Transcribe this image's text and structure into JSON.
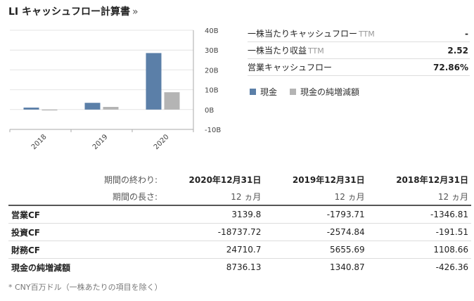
{
  "header": {
    "title": "LI キャッシュフロー計算書",
    "chevron": "»"
  },
  "chart_data": {
    "type": "bar",
    "categories": [
      "2018",
      "2019",
      "2020"
    ],
    "series": [
      {
        "name": "現金",
        "color": "#5b7fa8",
        "values": [
          1.0,
          3.4,
          28.5
        ]
      },
      {
        "name": "現金の純増減額",
        "color": "#b4b4b4",
        "values": [
          -0.43,
          1.34,
          8.74
        ]
      }
    ],
    "ylim": [
      -10,
      40
    ],
    "yticks": [
      40,
      30,
      20,
      10,
      0,
      -10
    ],
    "ytick_labels": [
      "40B",
      "30B",
      "20B",
      "10B",
      "0B",
      "-10B"
    ],
    "grid": true
  },
  "stats": [
    {
      "label": "一株当たりキャッシュフロー",
      "suffix": "TTM",
      "value": "-"
    },
    {
      "label": "一株当たり収益",
      "suffix": "TTM",
      "value": "2.52"
    },
    {
      "label": "営業キャッシュフロー",
      "suffix": "",
      "value": "72.86%"
    }
  ],
  "legend": [
    {
      "label": "現金",
      "color": "#5b7fa8"
    },
    {
      "label": "現金の純増減額",
      "color": "#b4b4b4"
    }
  ],
  "table": {
    "period_end_label": "期間の終わり:",
    "period_length_label": "期間の長さ:",
    "columns": [
      "2020年12月31日",
      "2019年12月31日",
      "2018年12月31日"
    ],
    "lengths": [
      "12 ヵ月",
      "12 ヵ月",
      "12 ヵ月"
    ],
    "rows": [
      {
        "name": "営業CF",
        "values": [
          "3139.8",
          "-1793.71",
          "-1346.81"
        ]
      },
      {
        "name": "投資CF",
        "values": [
          "-18737.72",
          "-2574.84",
          "-191.51"
        ]
      },
      {
        "name": "財務CF",
        "values": [
          "24710.7",
          "5655.69",
          "1108.66"
        ]
      },
      {
        "name": "現金の純増減額",
        "values": [
          "8736.13",
          "1340.87",
          "-426.36"
        ]
      }
    ]
  },
  "footnote": "* CNY百万ドル（一株あたりの項目を除く）"
}
